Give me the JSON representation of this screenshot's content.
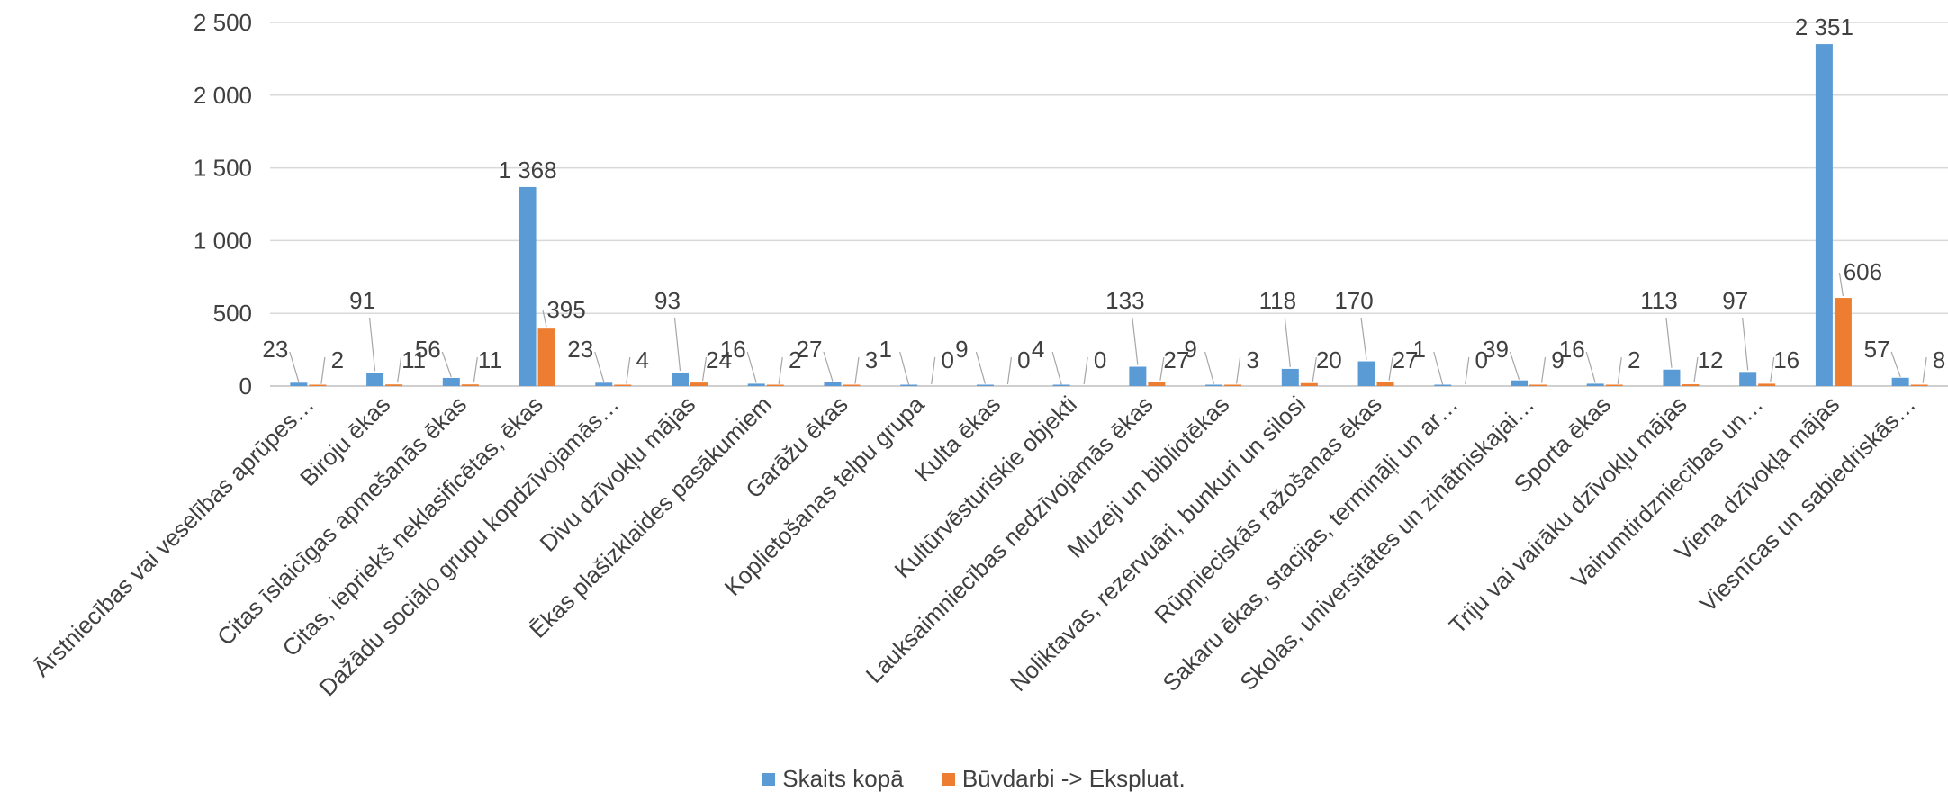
{
  "chart_data": {
    "type": "bar",
    "categories": [
      "Ārstniecības vai veselības aprūpes…",
      "Biroju ēkas",
      "Citas īslaicīgas apmešanās ēkas",
      "Citas, iepriekš neklasificētas, ēkas",
      "Dažādu sociālo grupu kopdzīvojamās…",
      "Divu dzīvokļu mājas",
      "Ēkas plašizklaides pasākumiem",
      "Garāžu ēkas",
      "Koplietošanas telpu grupa",
      "Kulta ēkas",
      "Kultūrvēsturiskie objekti",
      "Lauksaimniecības nedzīvojamās ēkas",
      "Muzeji un bibliotēkas",
      "Noliktavas, rezervuāri, bunkuri un silosi",
      "Rūpnieciskās ražošanas ēkas",
      "Sakaru ēkas, stacijas, termināļi un ar…",
      "Skolas, universitātes un zinātniskajai…",
      "Sporta ēkas",
      "Triju vai vairāku dzīvokļu mājas",
      "Vairumtirdzniecības un…",
      "Viena dzīvokļa mājas",
      "Viesnīcas un sabiedriskās…"
    ],
    "series": [
      {
        "name": "Skaits kopā",
        "color": "#5B9BD5",
        "values": [
          23,
          91,
          56,
          1368,
          23,
          93,
          16,
          27,
          1,
          9,
          4,
          133,
          9,
          118,
          170,
          1,
          39,
          16,
          113,
          97,
          2351,
          57
        ],
        "labels": [
          "23",
          "91",
          "56",
          "1 368",
          "23",
          "93",
          "16",
          "27",
          "1",
          "9",
          "4",
          "133",
          "9",
          "118",
          "170",
          "1",
          "39",
          "16",
          "113",
          "97",
          "2 351",
          "57"
        ]
      },
      {
        "name": "Būvdarbi -> Ekspluat.",
        "color": "#ED7D31",
        "values": [
          2,
          11,
          11,
          395,
          4,
          24,
          2,
          3,
          0,
          0,
          0,
          27,
          3,
          20,
          27,
          0,
          9,
          2,
          12,
          16,
          606,
          8
        ],
        "labels": [
          "2",
          "11",
          "11",
          "395",
          "4",
          "24",
          "2",
          "3",
          "0",
          "0",
          "0",
          "27",
          "3",
          "20",
          "27",
          "0",
          "9",
          "2",
          "12",
          "16",
          "606",
          "8"
        ]
      }
    ],
    "yticks": [
      "0",
      "500",
      "1 000",
      "1 500",
      "2 000",
      "2 500"
    ],
    "ytick_values": [
      0,
      500,
      1000,
      1500,
      2000,
      2500
    ],
    "ylim": [
      0,
      2500
    ],
    "grid": true,
    "legend_position": "bottom",
    "title": "",
    "xlabel": "",
    "ylabel": ""
  }
}
